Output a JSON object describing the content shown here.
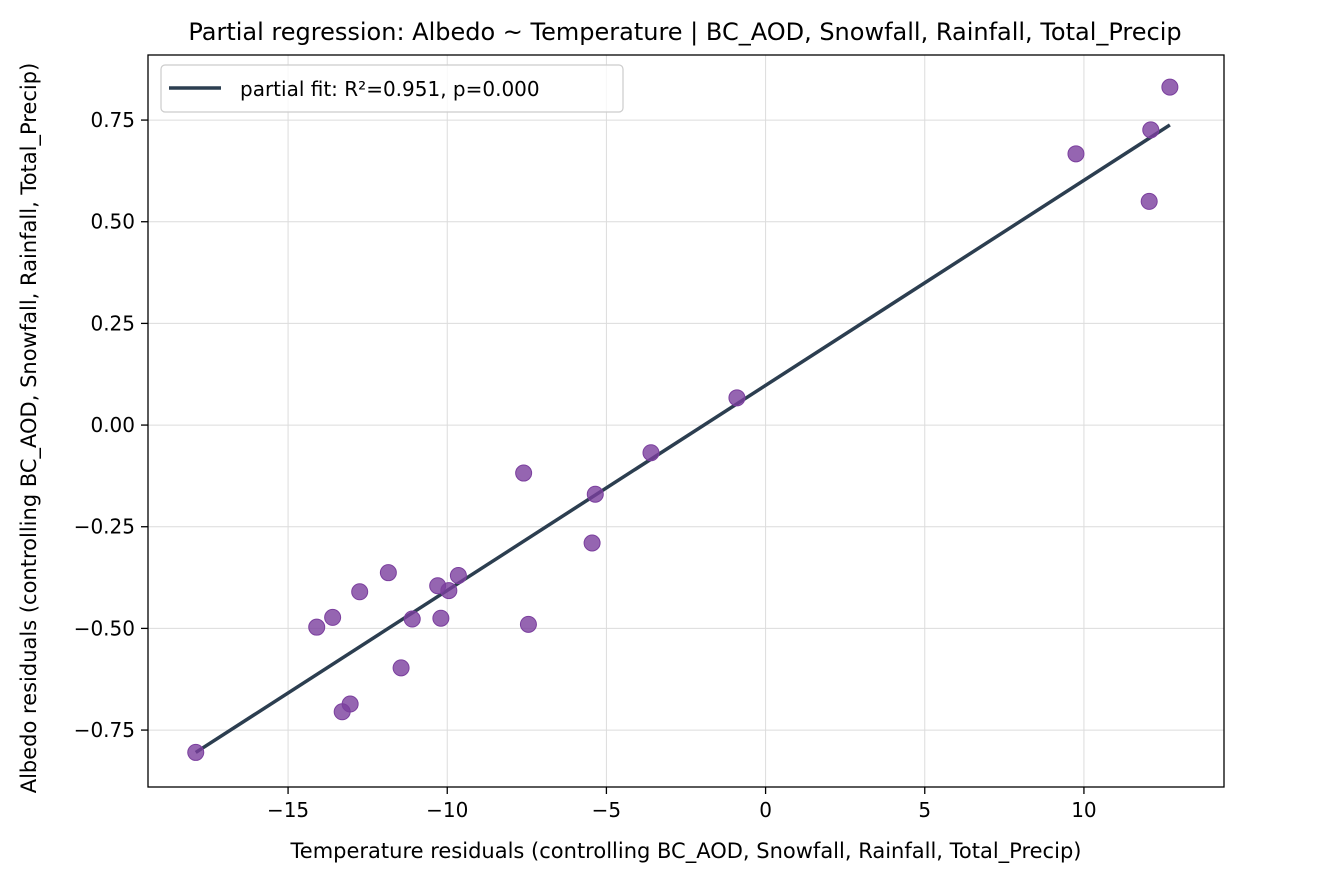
{
  "chart_data": {
    "type": "scatter",
    "title": "Partial regression: Albedo ~ Temperature | BC_AOD, Snowfall, Rainfall, Total_Precip",
    "xlabel": "Temperature residuals (controlling BC_AOD, Snowfall, Rainfall, Total_Precip)",
    "ylabel": "Albedo residuals (controlling BC_AOD, Snowfall, Rainfall, Total_Precip)",
    "xlim": [
      -19.4,
      14.4
    ],
    "ylim": [
      -0.89,
      0.91
    ],
    "xticks": [
      -15,
      -10,
      -5,
      0,
      5,
      10
    ],
    "xtick_labels": [
      "−15",
      "−10",
      "−5",
      "0",
      "5",
      "10"
    ],
    "yticks": [
      -0.75,
      -0.5,
      -0.25,
      0.0,
      0.25,
      0.5,
      0.75
    ],
    "ytick_labels": [
      "−0.75",
      "−0.50",
      "−0.25",
      "0.00",
      "0.25",
      "0.50",
      "0.75"
    ],
    "grid": true,
    "legend_position": "upper-left",
    "colors": {
      "points": "#7B3F9E",
      "fit_line": "#2C3E50"
    },
    "series": [
      {
        "points": [
          {
            "x": -17.9,
            "y": -0.805
          },
          {
            "x": -14.1,
            "y": -0.497
          },
          {
            "x": -13.6,
            "y": -0.473
          },
          {
            "x": -13.3,
            "y": -0.705
          },
          {
            "x": -13.05,
            "y": -0.686
          },
          {
            "x": -12.75,
            "y": -0.41
          },
          {
            "x": -11.85,
            "y": -0.363
          },
          {
            "x": -11.45,
            "y": -0.597
          },
          {
            "x": -11.1,
            "y": -0.477
          },
          {
            "x": -10.3,
            "y": -0.395
          },
          {
            "x": -10.2,
            "y": -0.475
          },
          {
            "x": -9.95,
            "y": -0.407
          },
          {
            "x": -9.65,
            "y": -0.37
          },
          {
            "x": -7.6,
            "y": -0.118
          },
          {
            "x": -7.45,
            "y": -0.49
          },
          {
            "x": -5.45,
            "y": -0.29
          },
          {
            "x": -5.35,
            "y": -0.17
          },
          {
            "x": -3.6,
            "y": -0.068
          },
          {
            "x": -0.9,
            "y": 0.067
          },
          {
            "x": 9.75,
            "y": 0.667
          },
          {
            "x": 12.05,
            "y": 0.55
          },
          {
            "x": 12.1,
            "y": 0.726
          },
          {
            "x": 12.7,
            "y": 0.831
          }
        ]
      },
      {
        "name": "partial fit: R²=0.951, p=0.000",
        "line": [
          {
            "x": -17.9,
            "y": -0.805
          },
          {
            "x": 12.7,
            "y": 0.738
          }
        ]
      }
    ]
  }
}
